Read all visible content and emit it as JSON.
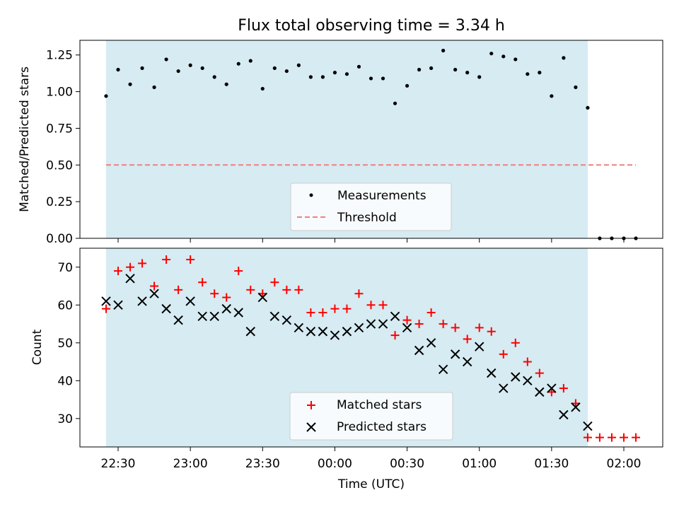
{
  "chart_data": [
    {
      "type": "scatter",
      "title": "Flux total observing time = 3.34 h",
      "xlabel": "",
      "ylabel": "Matched/Predicted stars",
      "ylim": [
        0.0,
        1.35
      ],
      "yticks": [
        "0.00",
        "0.25",
        "0.50",
        "0.75",
        "1.00",
        "1.25"
      ],
      "shaded_region": {
        "start": "22:25",
        "end": "01:45",
        "color": "#add8e6"
      },
      "legend_position": "lower center",
      "series": [
        {
          "name": "Measurements",
          "marker": "dot",
          "color": "#000000",
          "x": [
            "22:25",
            "22:30",
            "22:35",
            "22:40",
            "22:45",
            "22:50",
            "22:55",
            "23:00",
            "23:05",
            "23:10",
            "23:15",
            "23:20",
            "23:25",
            "23:30",
            "23:35",
            "23:40",
            "23:45",
            "23:50",
            "23:55",
            "00:00",
            "00:05",
            "00:10",
            "00:15",
            "00:20",
            "00:25",
            "00:30",
            "00:35",
            "00:40",
            "00:45",
            "00:50",
            "00:55",
            "01:00",
            "01:05",
            "01:10",
            "01:15",
            "01:20",
            "01:25",
            "01:30",
            "01:35",
            "01:40",
            "01:45",
            "01:50",
            "01:55",
            "02:00",
            "02:05"
          ],
          "y": [
            0.97,
            1.15,
            1.05,
            1.16,
            1.03,
            1.22,
            1.14,
            1.18,
            1.16,
            1.1,
            1.05,
            1.19,
            1.21,
            1.02,
            1.16,
            1.14,
            1.18,
            1.1,
            1.1,
            1.13,
            1.12,
            1.17,
            1.09,
            1.09,
            0.92,
            1.04,
            1.15,
            1.16,
            1.28,
            1.15,
            1.13,
            1.1,
            1.26,
            1.24,
            1.22,
            1.12,
            1.13,
            0.97,
            1.23,
            1.03,
            0.89,
            0.0,
            0.0,
            0.0,
            0.0
          ]
        },
        {
          "name": "Threshold",
          "style": "dashed",
          "color": "#f08080",
          "x": [
            "22:25",
            "02:05"
          ],
          "y": [
            0.5,
            0.5
          ]
        }
      ]
    },
    {
      "type": "scatter",
      "title": "",
      "xlabel": "Time (UTC)",
      "ylabel": "Count",
      "ylim": [
        22.5,
        75
      ],
      "yticks": [
        "30",
        "40",
        "50",
        "60",
        "70"
      ],
      "xticks": [
        "22:30",
        "23:00",
        "23:30",
        "00:00",
        "00:30",
        "01:00",
        "01:30",
        "02:00"
      ],
      "shaded_region": {
        "start": "22:25",
        "end": "01:45",
        "color": "#add8e6"
      },
      "legend_position": "lower center",
      "series": [
        {
          "name": "Matched stars",
          "marker": "plus",
          "color": "#ff0000",
          "x": [
            "22:25",
            "22:30",
            "22:35",
            "22:40",
            "22:45",
            "22:50",
            "22:55",
            "23:00",
            "23:05",
            "23:10",
            "23:15",
            "23:20",
            "23:25",
            "23:30",
            "23:35",
            "23:40",
            "23:45",
            "23:50",
            "23:55",
            "00:00",
            "00:05",
            "00:10",
            "00:15",
            "00:20",
            "00:25",
            "00:30",
            "00:35",
            "00:40",
            "00:45",
            "00:50",
            "00:55",
            "01:00",
            "01:05",
            "01:10",
            "01:15",
            "01:20",
            "01:25",
            "01:30",
            "01:35",
            "01:40",
            "01:45",
            "01:50",
            "01:55",
            "02:00",
            "02:05"
          ],
          "y": [
            59,
            69,
            70,
            71,
            65,
            72,
            64,
            72,
            66,
            63,
            62,
            69,
            64,
            63,
            66,
            64,
            64,
            58,
            58,
            59,
            59,
            63,
            60,
            60,
            52,
            56,
            55,
            58,
            55,
            54,
            51,
            54,
            53,
            47,
            50,
            45,
            42,
            37,
            38,
            34,
            25,
            25,
            25,
            25,
            25
          ]
        },
        {
          "name": "Predicted stars",
          "marker": "x",
          "color": "#000000",
          "x": [
            "22:25",
            "22:30",
            "22:35",
            "22:40",
            "22:45",
            "22:50",
            "22:55",
            "23:00",
            "23:05",
            "23:10",
            "23:15",
            "23:20",
            "23:25",
            "23:30",
            "23:35",
            "23:40",
            "23:45",
            "23:50",
            "23:55",
            "00:00",
            "00:05",
            "00:10",
            "00:15",
            "00:20",
            "00:25",
            "00:30",
            "00:35",
            "00:40",
            "00:45",
            "00:50",
            "00:55",
            "01:00",
            "01:05",
            "01:10",
            "01:15",
            "01:20",
            "01:25",
            "01:30",
            "01:35",
            "01:40",
            "01:45"
          ],
          "y": [
            61,
            60,
            67,
            61,
            63,
            59,
            56,
            61,
            57,
            57,
            59,
            58,
            53,
            62,
            57,
            56,
            54,
            53,
            53,
            52,
            53,
            54,
            55,
            55,
            57,
            54,
            48,
            50,
            43,
            47,
            45,
            49,
            42,
            38,
            41,
            40,
            37,
            38,
            31,
            33,
            28
          ]
        }
      ]
    }
  ]
}
